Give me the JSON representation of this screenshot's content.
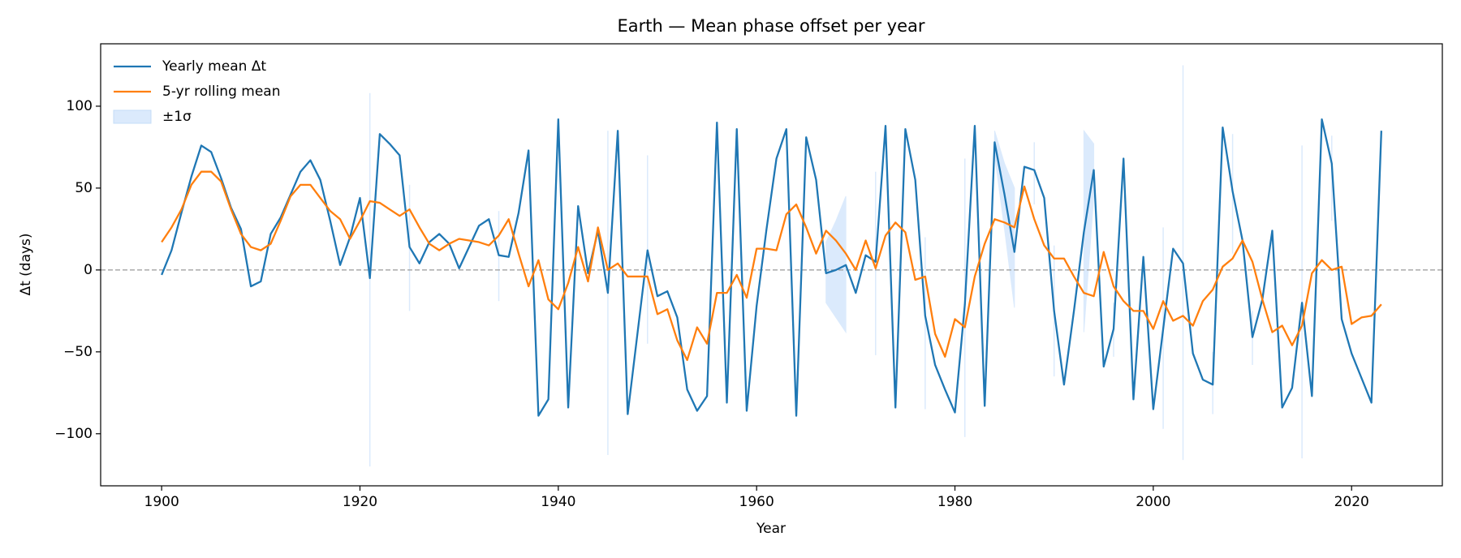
{
  "chart_data": {
    "type": "line",
    "title": "Earth — Mean phase offset per year",
    "xlabel": "Year",
    "ylabel": "Δt (days)",
    "x": [
      1900,
      1901,
      1902,
      1903,
      1904,
      1905,
      1906,
      1907,
      1908,
      1909,
      1910,
      1911,
      1912,
      1913,
      1914,
      1915,
      1916,
      1917,
      1918,
      1919,
      1920,
      1921,
      1922,
      1923,
      1924,
      1925,
      1926,
      1927,
      1928,
      1929,
      1930,
      1931,
      1932,
      1933,
      1934,
      1935,
      1936,
      1937,
      1938,
      1939,
      1940,
      1941,
      1942,
      1943,
      1944,
      1945,
      1946,
      1947,
      1948,
      1949,
      1950,
      1951,
      1952,
      1953,
      1954,
      1955,
      1956,
      1957,
      1958,
      1959,
      1960,
      1961,
      1962,
      1963,
      1964,
      1965,
      1966,
      1967,
      1968,
      1969,
      1970,
      1971,
      1972,
      1973,
      1974,
      1975,
      1976,
      1977,
      1978,
      1979,
      1980,
      1981,
      1982,
      1983,
      1984,
      1985,
      1986,
      1987,
      1988,
      1989,
      1990,
      1991,
      1992,
      1993,
      1994,
      1995,
      1996,
      1997,
      1998,
      1999,
      2000,
      2001,
      2002,
      2003,
      2004,
      2005,
      2006,
      2007,
      2008,
      2009,
      2010,
      2011,
      2012,
      2013,
      2014,
      2015,
      2016,
      2017,
      2018,
      2019,
      2020,
      2021,
      2022,
      2023
    ],
    "series": [
      {
        "name": "Yearly mean Δt",
        "color": "#1f77b4",
        "values": [
          -3,
          12,
          35,
          57,
          76,
          72,
          56,
          38,
          25,
          -10,
          -7,
          22,
          32,
          46,
          60,
          67,
          55,
          30,
          3,
          20,
          44,
          -5,
          83,
          77,
          70,
          14,
          4,
          17,
          22,
          16,
          1,
          14,
          27,
          31,
          9,
          8,
          35,
          73,
          -89,
          -79,
          92,
          -84,
          39,
          -2,
          24,
          -14,
          85,
          -88,
          -38,
          12,
          -16,
          -13,
          -29,
          -73,
          -86,
          -77,
          90,
          -81,
          86,
          -86,
          -22,
          25,
          68,
          86,
          -89,
          81,
          55,
          -2,
          0,
          3,
          -14,
          9,
          5,
          88,
          -84,
          86,
          55,
          -28,
          -58,
          -73,
          -87,
          -21,
          88,
          -83,
          78,
          46,
          11,
          63,
          61,
          44,
          -25,
          -70,
          -25,
          23,
          61,
          -59,
          -36,
          68,
          -79,
          8,
          -85,
          -36,
          13,
          4,
          -51,
          -67,
          -70,
          87,
          48,
          18,
          -41,
          -18,
          24,
          -84,
          -72,
          -20,
          -77,
          92,
          65,
          -30,
          -51,
          -66,
          -81,
          85
        ]
      },
      {
        "name": "5-yr rolling mean",
        "color": "#ff7f0e",
        "values": [
          17,
          26,
          37,
          52,
          60,
          60,
          54,
          37,
          22,
          14,
          12,
          16,
          30,
          45,
          52,
          52,
          44,
          36,
          31,
          19,
          30,
          42,
          41,
          37,
          33,
          37,
          26,
          16,
          12,
          16,
          19,
          18,
          17,
          15,
          21,
          31,
          10,
          -10,
          6,
          -18,
          -24,
          -8,
          14,
          -7,
          26,
          0,
          4,
          -4,
          -4,
          -4,
          -27,
          -24,
          -43,
          -55,
          -35,
          -45,
          -14,
          -14,
          -3,
          -17,
          13,
          13,
          12,
          34,
          40,
          26,
          10,
          24,
          18,
          10,
          0,
          18,
          1,
          21,
          29,
          23,
          -6,
          -4,
          -39,
          -53,
          -30,
          -35,
          -4,
          16,
          31,
          29,
          26,
          51,
          31,
          15,
          7,
          7,
          -4,
          -14,
          -16,
          11,
          -10,
          -19,
          -25,
          -25,
          -36,
          -19,
          -31,
          -28,
          -34,
          -19,
          -12,
          2,
          7,
          18,
          5,
          -18,
          -38,
          -34,
          -46,
          -34,
          -2,
          6,
          0,
          2,
          -33,
          -29,
          -28,
          -21
        ]
      }
    ],
    "band": {
      "name": "±1σ",
      "color": "#dbeafc",
      "lower": [
        null,
        null,
        null,
        null,
        null,
        null,
        null,
        null,
        null,
        null,
        null,
        null,
        null,
        null,
        null,
        null,
        null,
        null,
        null,
        null,
        null,
        -120,
        null,
        null,
        null,
        -25,
        null,
        null,
        null,
        null,
        null,
        null,
        null,
        null,
        -19,
        null,
        null,
        null,
        null,
        null,
        null,
        null,
        null,
        null,
        null,
        -113,
        null,
        null,
        null,
        -45,
        null,
        null,
        null,
        null,
        null,
        null,
        null,
        null,
        null,
        null,
        null,
        null,
        null,
        null,
        null,
        null,
        null,
        -20,
        -29,
        -38,
        null,
        null,
        -52,
        null,
        null,
        null,
        null,
        -85,
        null,
        null,
        null,
        -102,
        null,
        null,
        70,
        25,
        -23,
        null,
        40,
        null,
        -65,
        null,
        null,
        -38,
        45,
        null,
        -53,
        null,
        null,
        null,
        null,
        -97,
        null,
        -116,
        null,
        null,
        -88,
        null,
        10,
        null,
        -58,
        null,
        null,
        null,
        null,
        -115,
        null,
        null,
        30,
        null,
        null,
        null,
        null,
        null
      ],
      "upper": [
        null,
        null,
        null,
        null,
        null,
        null,
        null,
        null,
        null,
        null,
        null,
        null,
        null,
        null,
        null,
        null,
        null,
        null,
        null,
        null,
        null,
        108,
        null,
        null,
        null,
        52,
        null,
        null,
        null,
        null,
        null,
        null,
        null,
        null,
        36,
        null,
        null,
        null,
        null,
        null,
        null,
        null,
        null,
        null,
        null,
        85,
        null,
        null,
        null,
        70,
        null,
        null,
        null,
        null,
        null,
        null,
        null,
        null,
        null,
        null,
        null,
        null,
        null,
        null,
        null,
        null,
        null,
        17,
        30,
        45,
        null,
        null,
        60,
        null,
        null,
        null,
        null,
        20,
        null,
        null,
        null,
        68,
        null,
        null,
        85,
        65,
        50,
        null,
        78,
        null,
        15,
        null,
        null,
        85,
        77,
        null,
        -20,
        null,
        null,
        null,
        null,
        26,
        null,
        125,
        null,
        null,
        -50,
        null,
        83,
        null,
        -25,
        null,
        null,
        null,
        null,
        76,
        null,
        null,
        82,
        null,
        null,
        null,
        null,
        null
      ]
    },
    "reference_line": 0,
    "xlim": [
      1893.85,
      2029.15
    ],
    "ylim": [
      -131.8,
      138.1
    ],
    "xticks": [
      1900,
      1920,
      1940,
      1960,
      1980,
      2000,
      2020
    ],
    "yticks": [
      {
        "value": -100,
        "label": "−100"
      },
      {
        "value": -50,
        "label": "−50"
      },
      0,
      50,
      100
    ],
    "grid": false,
    "legend": "upper left"
  }
}
